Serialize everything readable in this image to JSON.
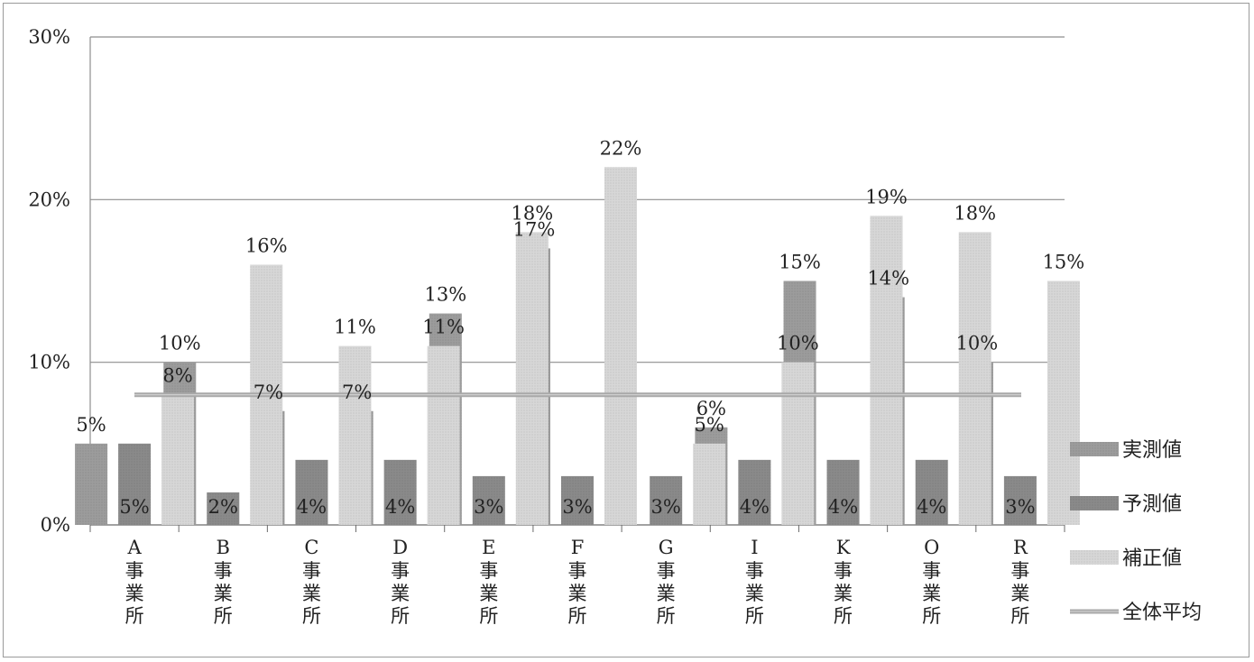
{
  "chart_data": {
    "type": "bar",
    "ylim": [
      0,
      30
    ],
    "yticks": [
      "0%",
      "10%",
      "20%",
      "30%"
    ],
    "ytick_values": [
      0,
      10,
      20,
      30
    ],
    "categories": [
      {
        "letter": "A",
        "label": "事業所"
      },
      {
        "letter": "B",
        "label": "事業所"
      },
      {
        "letter": "C",
        "label": "事業所"
      },
      {
        "letter": "D",
        "label": "事業所"
      },
      {
        "letter": "E",
        "label": "事業所"
      },
      {
        "letter": "F",
        "label": "事業所"
      },
      {
        "letter": "G",
        "label": "事業所"
      },
      {
        "letter": "I",
        "label": "事業所"
      },
      {
        "letter": "K",
        "label": "事業所"
      },
      {
        "letter": "O",
        "label": "事業所"
      },
      {
        "letter": "R",
        "label": "事業所"
      }
    ],
    "series": [
      {
        "name": "実測値",
        "color": "#9c9c9c",
        "values": [
          5,
          10,
          7,
          7,
          13,
          17,
          0,
          6,
          15,
          14,
          10
        ],
        "labels": [
          "5%",
          "10%",
          "7%",
          "7%",
          "13%",
          "17%",
          "",
          "6%",
          "15%",
          "14%",
          "10%"
        ],
        "label_position": "above"
      },
      {
        "name": "予測値",
        "color": "#8a8a8a",
        "values": [
          5,
          2,
          4,
          4,
          3,
          3,
          3,
          4,
          4,
          4,
          3
        ],
        "labels": [
          "5%",
          "2%",
          "4%",
          "4%",
          "3%",
          "3%",
          "3%",
          "4%",
          "4%",
          "4%",
          "3%"
        ],
        "label_position": "bottom"
      },
      {
        "name": "補正値",
        "color": "#d7d7d7",
        "values": [
          8,
          16,
          11,
          11,
          18,
          22,
          5,
          10,
          19,
          18,
          15
        ],
        "labels": [
          "8%",
          "16%",
          "11%",
          "11%",
          "18%",
          "22%",
          "5%",
          "10%",
          "19%",
          "18%",
          "15%"
        ],
        "label_position": "above"
      }
    ],
    "average_line": {
      "name": "全体平均",
      "value": 8,
      "color": "#a8a8a8"
    },
    "legend_position": "right",
    "grid": true
  }
}
